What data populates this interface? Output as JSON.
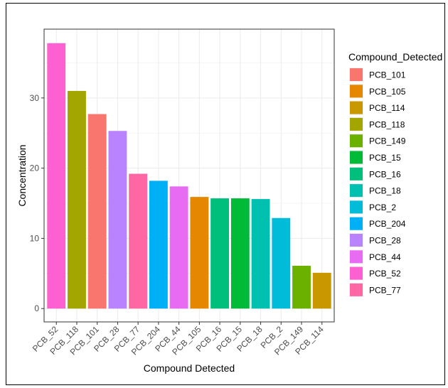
{
  "chart_data": {
    "type": "bar",
    "xlabel": "Compound Detected",
    "ylabel": "Concentration",
    "ylim": [
      -1.9,
      39.8
    ],
    "yticks": [
      0,
      10,
      20,
      30
    ],
    "grid": true,
    "legend_position": "right",
    "legend_title": "Compound_Detected",
    "categories": [
      "PCB_52",
      "PCB_118",
      "PCB_101",
      "PCB_28",
      "PCB_77",
      "PCB_204",
      "PCB_44",
      "PCB_105",
      "PCB_16",
      "PCB_15",
      "PCB_18",
      "PCB_2",
      "PCB_149",
      "PCB_114"
    ],
    "values": [
      37.8,
      31.0,
      27.7,
      25.3,
      19.2,
      18.2,
      17.4,
      15.9,
      15.7,
      15.7,
      15.6,
      12.9,
      6.1,
      5.1
    ],
    "legend_entries": [
      {
        "name": "PCB_101",
        "color": "#F8766D"
      },
      {
        "name": "PCB_105",
        "color": "#E58700"
      },
      {
        "name": "PCB_114",
        "color": "#C99800"
      },
      {
        "name": "PCB_118",
        "color": "#A3A500"
      },
      {
        "name": "PCB_149",
        "color": "#6BB100"
      },
      {
        "name": "PCB_15",
        "color": "#00BA38"
      },
      {
        "name": "PCB_16",
        "color": "#00BF7D"
      },
      {
        "name": "PCB_18",
        "color": "#00C0AF"
      },
      {
        "name": "PCB_2",
        "color": "#00BCD8"
      },
      {
        "name": "PCB_204",
        "color": "#00B0F6"
      },
      {
        "name": "PCB_28",
        "color": "#B983FF"
      },
      {
        "name": "PCB_44",
        "color": "#E76BF3"
      },
      {
        "name": "PCB_52",
        "color": "#FD61D1"
      },
      {
        "name": "PCB_77",
        "color": "#FF67A4"
      }
    ]
  }
}
